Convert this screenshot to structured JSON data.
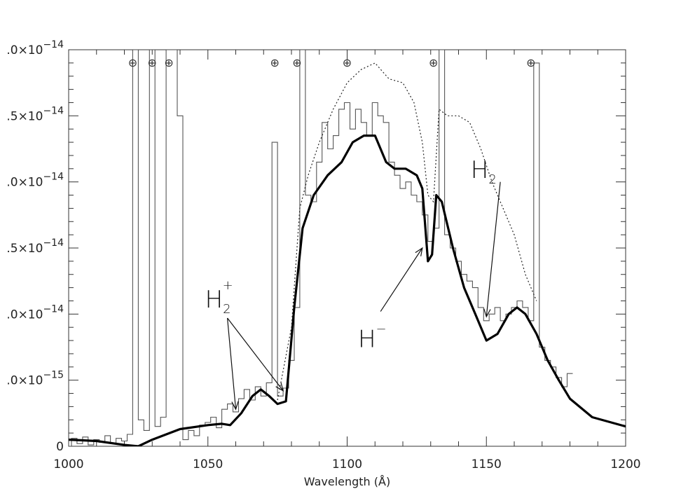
{
  "chart_data": {
    "type": "line",
    "xlabel": "Wavelength (Å)",
    "ylabel": "",
    "xlim": [
      1000,
      1200
    ],
    "ylim": [
      0,
      3e-14
    ],
    "x_ticks": [
      1000,
      1050,
      1100,
      1150,
      1200
    ],
    "x_tick_labels": [
      "1000",
      "1050",
      "1100",
      "1150",
      "1200"
    ],
    "y_ticks": [
      0,
      5e-15,
      1e-14,
      1.5e-14,
      2e-14,
      2.5e-14,
      3e-14
    ],
    "y_tick_labels": [
      {
        "mant": "0",
        "exp": ""
      },
      {
        "mant": ".0×10",
        "exp": "−15"
      },
      {
        "mant": ".0×10",
        "exp": "−14"
      },
      {
        "mant": ".5×10",
        "exp": "−14"
      },
      {
        "mant": ".0×10",
        "exp": "−14"
      },
      {
        "mant": ".5×10",
        "exp": "−14"
      },
      {
        "mant": ".0×10",
        "exp": "−14"
      }
    ],
    "grid": false,
    "earth_symbol": "⊕",
    "telluric_markers": [
      1023,
      1030,
      1036,
      1074,
      1082,
      1100,
      1131,
      1166
    ],
    "series": [
      {
        "style": "histogram",
        "x": [
          1000,
          1002,
          1004,
          1006,
          1008,
          1010,
          1012,
          1014,
          1016,
          1018,
          1020,
          1022,
          1024,
          1026,
          1028,
          1030,
          1032,
          1034,
          1036,
          1038,
          1040,
          1042,
          1044,
          1046,
          1048,
          1050,
          1052,
          1054,
          1056,
          1058,
          1060,
          1062,
          1064,
          1066,
          1068,
          1070,
          1072,
          1074,
          1076,
          1078,
          1080,
          1082,
          1084,
          1086,
          1088,
          1090,
          1092,
          1094,
          1096,
          1098,
          1100,
          1102,
          1104,
          1106,
          1108,
          1110,
          1112,
          1114,
          1116,
          1118,
          1120,
          1122,
          1124,
          1126,
          1128,
          1130,
          1132,
          1134,
          1136,
          1138,
          1140,
          1142,
          1144,
          1146,
          1148,
          1150,
          1152,
          1154,
          1156,
          1158,
          1160,
          1162,
          1164,
          1166,
          1168,
          1170,
          1172,
          1174,
          1176,
          1178,
          1180
        ],
        "y": [
          0.0,
          6e-16,
          2e-16,
          7e-16,
          1e-16,
          5e-16,
          3e-16,
          8e-16,
          2e-16,
          6e-16,
          4e-16,
          9e-16,
          3e-14,
          2e-15,
          1.2e-15,
          3e-14,
          1.5e-15,
          2.2e-15,
          3e-14,
          3e-14,
          2.5e-14,
          5e-16,
          1.2e-15,
          8e-16,
          1.6e-15,
          1.8e-15,
          2.2e-15,
          1.4e-15,
          2.8e-15,
          3.2e-15,
          2.6e-15,
          3.6e-15,
          4.3e-15,
          3.5e-15,
          4.5e-15,
          3.8e-15,
          4.8e-15,
          2.3e-14,
          3.8e-15,
          4.4e-15,
          6.5e-15,
          1.05e-14,
          3e-14,
          1.9e-14,
          1.85e-14,
          2.15e-14,
          2.45e-14,
          2.25e-14,
          2.35e-14,
          2.55e-14,
          2.6e-14,
          2.4e-14,
          2.55e-14,
          2.45e-14,
          2.35e-14,
          2.6e-14,
          2.5e-14,
          2.45e-14,
          2.15e-14,
          2.05e-14,
          1.95e-14,
          2e-14,
          1.9e-14,
          1.85e-14,
          1.75e-14,
          1.55e-14,
          1.65e-14,
          3e-14,
          1.6e-14,
          1.5e-14,
          1.4e-14,
          1.3e-14,
          1.25e-14,
          1.2e-14,
          1.05e-14,
          9.5e-15,
          1e-14,
          1.05e-14,
          9.5e-15,
          1e-14,
          1.05e-14,
          1.1e-14,
          1.05e-14,
          9.5e-15,
          2.9e-14,
          7.5e-15,
          6.5e-15,
          6e-15,
          5.2e-15,
          4.5e-15,
          5.5e-15
        ]
      },
      {
        "style": "thick",
        "x": [
          1000,
          1010,
          1020,
          1025,
          1030,
          1040,
          1050,
          1055,
          1058,
          1062,
          1066,
          1069,
          1072,
          1075,
          1078,
          1081,
          1084,
          1088,
          1093,
          1098,
          1102,
          1106,
          1110,
          1114,
          1117,
          1121,
          1125,
          1127,
          1129,
          1130.5,
          1132,
          1134,
          1138,
          1142,
          1146,
          1150,
          1154,
          1158,
          1161,
          1164,
          1168,
          1172,
          1176,
          1180,
          1188,
          1200
        ],
        "y": [
          5e-16,
          4e-16,
          1e-16,
          -1e-16,
          5e-16,
          1.3e-15,
          1.6e-15,
          1.7e-15,
          1.6e-15,
          2.5e-15,
          3.8e-15,
          4.3e-15,
          3.8e-15,
          3.2e-15,
          3.4e-15,
          1.05e-14,
          1.65e-14,
          1.9e-14,
          2.05e-14,
          2.15e-14,
          2.3e-14,
          2.35e-14,
          2.35e-14,
          2.15e-14,
          2.1e-14,
          2.1e-14,
          2.05e-14,
          1.95e-14,
          1.4e-14,
          1.45e-14,
          1.9e-14,
          1.85e-14,
          1.5e-14,
          1.2e-14,
          1e-14,
          8e-15,
          8.5e-15,
          1e-14,
          1.05e-14,
          1e-14,
          8.5e-15,
          6.5e-15,
          5e-15,
          3.6e-15,
          2.2e-15,
          1.5e-15
        ]
      },
      {
        "style": "dotted",
        "x": [
          1075,
          1080,
          1083,
          1086,
          1090,
          1095,
          1100,
          1105,
          1110,
          1115,
          1120,
          1124,
          1127,
          1129,
          1131,
          1133,
          1136,
          1140,
          1144,
          1148,
          1152,
          1156,
          1160,
          1164,
          1168
        ],
        "y": [
          3.5e-15,
          9e-15,
          1.8e-14,
          2.05e-14,
          2.3e-14,
          2.55e-14,
          2.75e-14,
          2.85e-14,
          2.9e-14,
          2.78e-14,
          2.75e-14,
          2.6e-14,
          2.3e-14,
          1.9e-14,
          1.85e-14,
          2.55e-14,
          2.5e-14,
          2.5e-14,
          2.45e-14,
          2.25e-14,
          2e-14,
          1.8e-14,
          1.6e-14,
          1.3e-14,
          1.1e-14
        ]
      }
    ],
    "annotations": [
      {
        "label": "H",
        "sub": "2",
        "sup": "+",
        "x": 1054,
        "y": 1.05e-14
      },
      {
        "label": "H",
        "sub": "",
        "sup": "−",
        "x": 1109,
        "y": 7.5e-15
      },
      {
        "label": "H",
        "sub": "2",
        "sup": "",
        "x": 1149,
        "y": 2.03e-14
      }
    ]
  }
}
